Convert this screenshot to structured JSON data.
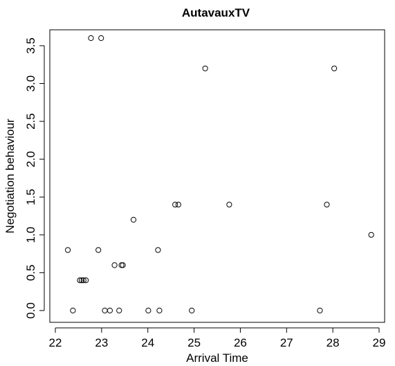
{
  "chart_data": {
    "type": "scatter",
    "title": "AutavauxTV",
    "xlabel": "Arrival Time",
    "ylabel": "Negotiation behaviour",
    "xlim": [
      22,
      29
    ],
    "ylim": [
      0,
      3.6
    ],
    "xticks": [
      "22",
      "23",
      "24",
      "25",
      "26",
      "27",
      "28",
      "29"
    ],
    "yticks": [
      "0.0",
      "0.5",
      "1.0",
      "1.5",
      "2.0",
      "2.5",
      "3.0",
      "3.5"
    ],
    "grid": false,
    "legend": "none",
    "points": [
      {
        "x": 22.27,
        "y": 0.8
      },
      {
        "x": 22.38,
        "y": 0.0
      },
      {
        "x": 22.53,
        "y": 0.4
      },
      {
        "x": 22.57,
        "y": 0.4
      },
      {
        "x": 22.61,
        "y": 0.4
      },
      {
        "x": 22.66,
        "y": 0.4
      },
      {
        "x": 22.77,
        "y": 3.6
      },
      {
        "x": 22.93,
        "y": 0.8
      },
      {
        "x": 22.99,
        "y": 3.6
      },
      {
        "x": 23.07,
        "y": 0.0
      },
      {
        "x": 23.18,
        "y": 0.0
      },
      {
        "x": 23.28,
        "y": 0.6
      },
      {
        "x": 23.38,
        "y": 0.0
      },
      {
        "x": 23.43,
        "y": 0.6
      },
      {
        "x": 23.46,
        "y": 0.6
      },
      {
        "x": 23.69,
        "y": 1.2
      },
      {
        "x": 24.01,
        "y": 0.0
      },
      {
        "x": 24.22,
        "y": 0.8
      },
      {
        "x": 24.25,
        "y": 0.0
      },
      {
        "x": 24.59,
        "y": 1.4
      },
      {
        "x": 24.66,
        "y": 1.4
      },
      {
        "x": 24.95,
        "y": 0.0
      },
      {
        "x": 25.24,
        "y": 3.2
      },
      {
        "x": 25.76,
        "y": 1.4
      },
      {
        "x": 27.72,
        "y": 0.0
      },
      {
        "x": 27.87,
        "y": 1.4
      },
      {
        "x": 28.03,
        "y": 3.2
      },
      {
        "x": 28.83,
        "y": 1.0
      }
    ]
  }
}
